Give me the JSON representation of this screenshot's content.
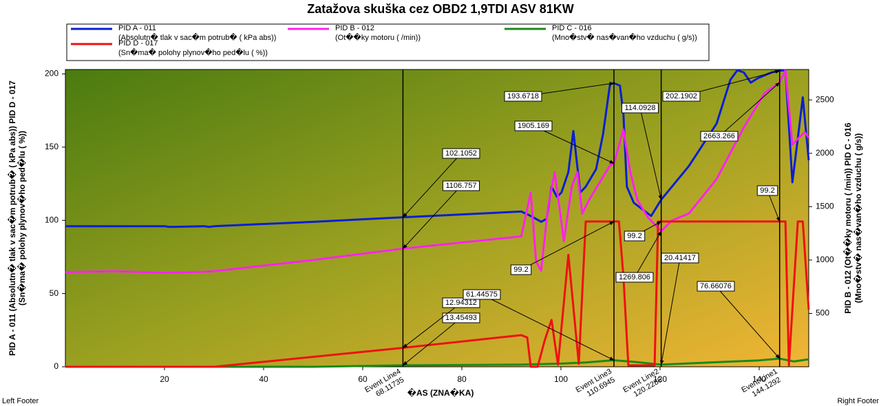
{
  "chart_data": {
    "type": "line",
    "title": "Zatažova skuška cez OBD2 1,9TDI ASV 81KW",
    "x_label": "�AS (ZNA�KA)",
    "y_label": [
      "PID A - 011 (Absolutn� tlak v sac�m potrub� ( kPa abs)) PID D - 017",
      "(Sn�ma� polohy plynov�ho ped�lu ( %))"
    ],
    "y2_label": [
      "PID B - 012 (Ot��ky motoru ( /min)) PID C - 016",
      "(Mno�stv� nas�van�ho vzduchu ( g/s))"
    ],
    "footer_left": "Left Footer",
    "footer_right": "Right Footer",
    "xlim": [
      0,
      150
    ],
    "xticks": [
      20,
      40,
      60,
      80,
      100,
      120,
      140
    ],
    "ylim": [
      0,
      203
    ],
    "yticks": [
      0,
      50,
      100,
      150,
      200
    ],
    "y2lim": [
      0,
      2785
    ],
    "y2ticks": [
      500,
      1000,
      1500,
      2000,
      2500
    ],
    "series": [
      {
        "name": "PID A - 011",
        "description": "(Absolutn� tlak v sac�m potrub� ( kPa abs))",
        "color": "#0a1ed2",
        "x": [
          0,
          20,
          21,
          28,
          29,
          30,
          50,
          68.11735,
          80,
          92,
          93.9,
          96,
          97.1,
          98.1,
          99.2,
          100.1,
          101.5,
          102.5,
          103.9,
          105,
          107.1,
          108.5,
          109.9,
          110.6945,
          111.9,
          112.6,
          113.3,
          114.7,
          118.2,
          120.2286,
          125.8,
          131.4,
          134.2,
          135.6,
          136.9,
          138.3,
          139.7,
          142.5,
          144.1292,
          145.3,
          146.7,
          147.8,
          148.8,
          150
        ],
        "values": [
          96,
          96,
          95.5,
          96,
          95.5,
          96,
          99,
          102.1052,
          104,
          106,
          103,
          99,
          101,
          123,
          116,
          119,
          133,
          161,
          119,
          123,
          135,
          159,
          193,
          193.6718,
          192,
          173,
          123,
          112,
          103,
          114.0928,
          137,
          166,
          196,
          202.5,
          201,
          194,
          197,
          201,
          202.1902,
          202.5,
          126,
          156,
          184,
          141
        ]
      },
      {
        "name": "PID B - 012",
        "description": "(Ot��ky motoru ( /min))",
        "color": "#ff22ee",
        "axis": "y2",
        "x": [
          0,
          10,
          20,
          28,
          30,
          50,
          68.11735,
          92,
          93.9,
          95,
          96,
          97.4,
          98.75,
          100.6,
          102.2,
          103.3,
          104.3,
          105.7,
          107.8,
          109.9,
          110.6945,
          112.6,
          114,
          115.4,
          117.5,
          120.2286,
          122.4,
          125.8,
          131.4,
          136.9,
          141.1,
          144.1292,
          145.3,
          146.7,
          148,
          149.2,
          150
        ],
        "values": [
          887,
          895,
          880,
          890,
          895,
          1000,
          1106.757,
          1222,
          1629,
          984,
          900,
          1500,
          1823,
          1177,
          1694,
          1823,
          1435,
          1565,
          1726,
          1887,
          1905.169,
          2223,
          1823,
          1565,
          1403,
          1269.806,
          1371,
          1435,
          1758,
          2242,
          2565,
          2663.266,
          2775,
          2081,
          2145,
          2197,
          2145
        ]
      },
      {
        "name": "PID C - 016",
        "description": "(Mno�stv� nas�van�ho vzduchu ( g/s))",
        "color": "#1a8a1a",
        "axis": "y2",
        "x": [
          0,
          50,
          68.11735,
          92,
          100,
          105,
          110.6945,
          115,
          120.2286,
          130,
          140,
          144.1292,
          147,
          150
        ],
        "values": [
          0,
          0,
          13.45493,
          20,
          30,
          40,
          61.44575,
          45,
          20.41417,
          40,
          60,
          76.66076,
          50,
          70
        ]
      },
      {
        "name": "PID D - 017",
        "description": "(Sn�ma� polohy plynov�ho ped�lu ( %))",
        "color": "#ee1111",
        "x": [
          0,
          30,
          68.11735,
          92,
          93.2,
          93.9,
          95.3,
          96.7,
          98.1,
          99.4,
          101.5,
          103.6,
          105,
          109.9,
          110.6945,
          111.7,
          112.6,
          113.6,
          118.9,
          119.6,
          120.2286,
          144.1292,
          145.3,
          146,
          147.8,
          148.8,
          150
        ],
        "values": [
          0,
          0,
          12.94312,
          21.6,
          20,
          0,
          0,
          17.8,
          32,
          1.4,
          76.5,
          2,
          99.2,
          99.2,
          99.2,
          99.2,
          62,
          1,
          1,
          99.2,
          99.2,
          99.2,
          99.2,
          1,
          99.2,
          99.2,
          39
        ]
      }
    ],
    "event_lines": [
      {
        "label": "Event Line4",
        "x": 68.11735,
        "values": [
          102.1052,
          1106.757,
          13.45493,
          12.94312
        ]
      },
      {
        "label": "Event Line3",
        "x": 110.6945,
        "values": [
          193.6718,
          1905.169,
          61.44575,
          99.2
        ]
      },
      {
        "label": "Event Line2",
        "x": 120.2286,
        "values": [
          114.0928,
          1269.806,
          20.41417,
          99.2
        ]
      },
      {
        "label": "Event Line1",
        "x": 144.1292,
        "values": [
          202.1902,
          2663.266,
          76.66076,
          99.2
        ]
      }
    ]
  }
}
